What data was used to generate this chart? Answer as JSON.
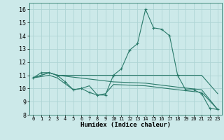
{
  "title": "",
  "xlabel": "Humidex (Indice chaleur)",
  "xlim": [
    -0.5,
    23.5
  ],
  "ylim": [
    8,
    16.5
  ],
  "yticks": [
    8,
    9,
    10,
    11,
    12,
    13,
    14,
    15,
    16
  ],
  "xticks": [
    0,
    1,
    2,
    3,
    4,
    5,
    6,
    7,
    8,
    9,
    10,
    11,
    12,
    13,
    14,
    15,
    16,
    17,
    18,
    19,
    20,
    21,
    22,
    23
  ],
  "bg_color": "#cce9e9",
  "grid_color": "#aed4d4",
  "line_color": "#2a7a6a",
  "lines": [
    {
      "x": [
        0,
        1,
        2,
        3,
        4,
        5,
        6,
        7,
        8,
        9,
        10,
        11,
        12,
        13,
        14,
        15,
        16,
        17,
        18,
        19,
        20,
        21,
        22,
        23
      ],
      "y": [
        10.8,
        11.2,
        11.2,
        11.0,
        10.5,
        9.9,
        10.0,
        9.7,
        9.5,
        9.5,
        11.0,
        11.5,
        12.9,
        13.4,
        16.0,
        14.6,
        14.5,
        14.0,
        11.0,
        9.9,
        9.9,
        9.6,
        8.5,
        8.4
      ],
      "marker": true
    },
    {
      "x": [
        0,
        2,
        3,
        10,
        14,
        18,
        21,
        23
      ],
      "y": [
        10.8,
        11.2,
        11.0,
        11.0,
        11.0,
        11.0,
        11.0,
        9.6
      ],
      "marker": false
    },
    {
      "x": [
        0,
        2,
        3,
        10,
        14,
        18,
        21,
        23
      ],
      "y": [
        10.8,
        11.2,
        11.0,
        10.5,
        10.4,
        10.1,
        9.9,
        8.4
      ],
      "marker": false
    },
    {
      "x": [
        0,
        2,
        3,
        5,
        6,
        7,
        8,
        9,
        10,
        14,
        18,
        21,
        23
      ],
      "y": [
        10.8,
        11.0,
        10.8,
        9.9,
        10.0,
        10.2,
        9.5,
        9.6,
        10.3,
        10.2,
        9.9,
        9.7,
        8.4
      ],
      "marker": false
    }
  ]
}
